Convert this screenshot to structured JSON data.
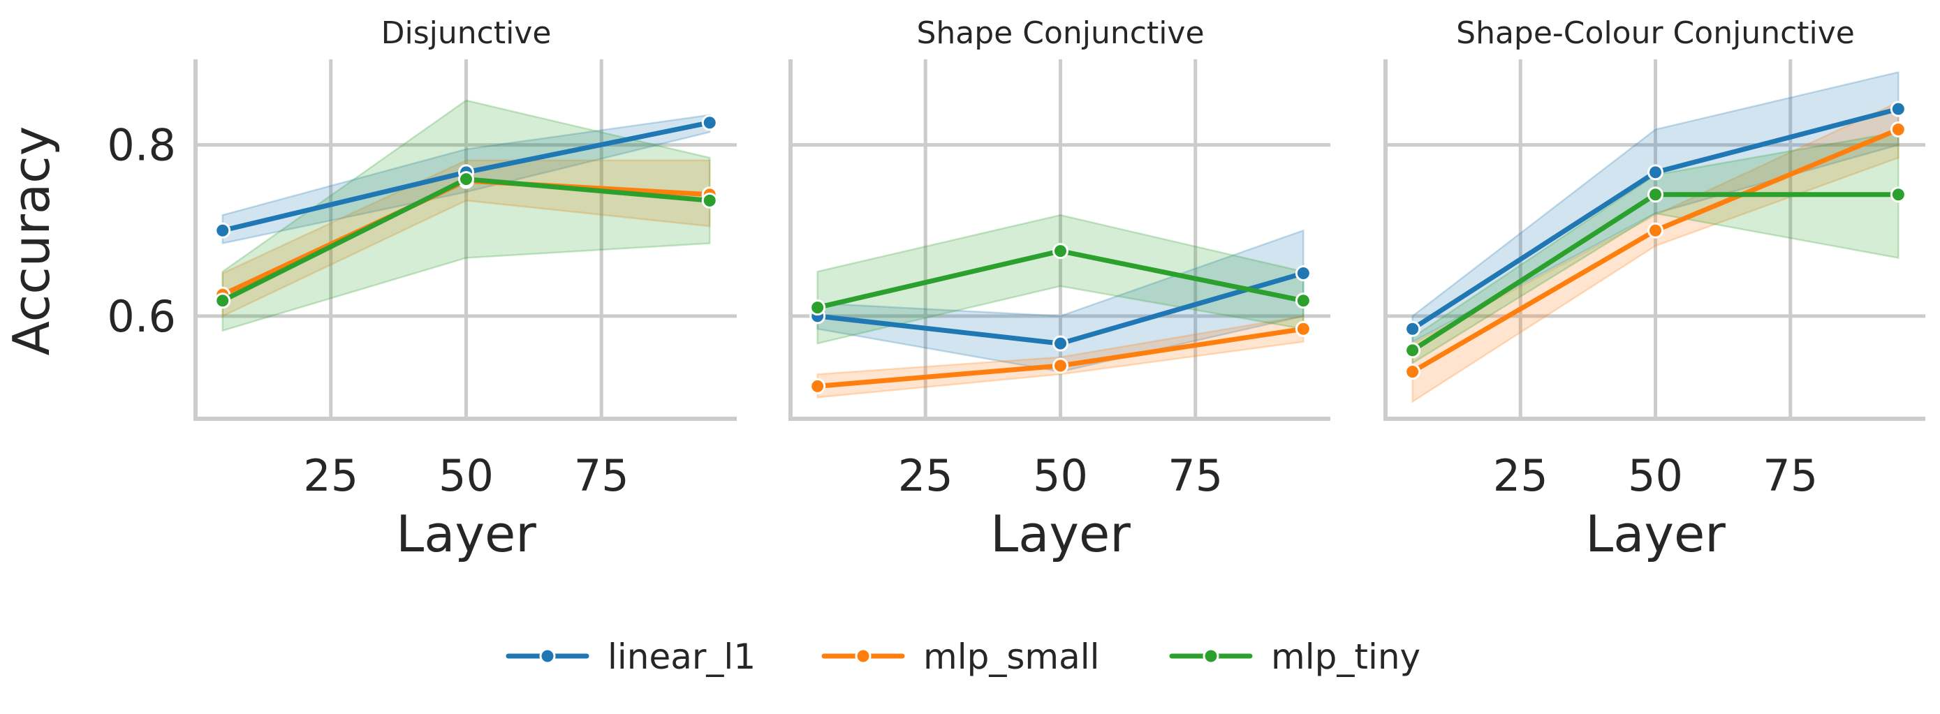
{
  "chart_data": [
    {
      "type": "line",
      "title": "Disjunctive",
      "xlabel": "Layer",
      "ylabel": "Accuracy",
      "xlim": [
        0,
        100
      ],
      "ylim": [
        0.48,
        0.9
      ],
      "xticks": [
        25,
        50,
        75
      ],
      "yticks": [
        0.6,
        0.8
      ],
      "grid": true,
      "series": [
        {
          "name": "linear_l1",
          "x": [
            5,
            50,
            95
          ],
          "y": [
            0.7,
            0.768,
            0.826
          ],
          "lower": [
            0.685,
            0.745,
            0.815
          ],
          "upper": [
            0.718,
            0.795,
            0.835
          ]
        },
        {
          "name": "mlp_small",
          "x": [
            5,
            50,
            95
          ],
          "y": [
            0.625,
            0.758,
            0.742
          ],
          "lower": [
            0.6,
            0.735,
            0.705
          ],
          "upper": [
            0.65,
            0.782,
            0.782
          ]
        },
        {
          "name": "mlp_tiny",
          "x": [
            5,
            50,
            95
          ],
          "y": [
            0.618,
            0.76,
            0.735
          ],
          "lower": [
            0.583,
            0.668,
            0.685
          ],
          "upper": [
            0.652,
            0.852,
            0.785
          ]
        }
      ]
    },
    {
      "type": "line",
      "title": "Shape Conjunctive",
      "xlabel": "Layer",
      "ylabel": "",
      "xlim": [
        0,
        100
      ],
      "ylim": [
        0.48,
        0.9
      ],
      "xticks": [
        25,
        50,
        75
      ],
      "yticks": [
        0.6,
        0.8
      ],
      "grid": true,
      "series": [
        {
          "name": "linear_l1",
          "x": [
            5,
            50,
            95
          ],
          "y": [
            0.6,
            0.568,
            0.65
          ],
          "lower": [
            0.585,
            0.535,
            0.6
          ],
          "upper": [
            0.615,
            0.6,
            0.7
          ]
        },
        {
          "name": "mlp_small",
          "x": [
            5,
            50,
            95
          ],
          "y": [
            0.518,
            0.542,
            0.585
          ],
          "lower": [
            0.505,
            0.532,
            0.57
          ],
          "upper": [
            0.532,
            0.552,
            0.6
          ]
        },
        {
          "name": "mlp_tiny",
          "x": [
            5,
            50,
            95
          ],
          "y": [
            0.61,
            0.676,
            0.618
          ],
          "lower": [
            0.568,
            0.635,
            0.585
          ],
          "upper": [
            0.652,
            0.718,
            0.652
          ]
        }
      ]
    },
    {
      "type": "line",
      "title": "Shape-Colour Conjunctive",
      "xlabel": "Layer",
      "ylabel": "",
      "xlim": [
        0,
        100
      ],
      "ylim": [
        0.48,
        0.9
      ],
      "xticks": [
        25,
        50,
        75
      ],
      "yticks": [
        0.6,
        0.8
      ],
      "grid": true,
      "series": [
        {
          "name": "linear_l1",
          "x": [
            5,
            50,
            95
          ],
          "y": [
            0.585,
            0.768,
            0.842
          ],
          "lower": [
            0.57,
            0.72,
            0.8
          ],
          "upper": [
            0.6,
            0.818,
            0.885
          ]
        },
        {
          "name": "mlp_small",
          "x": [
            5,
            50,
            95
          ],
          "y": [
            0.535,
            0.7,
            0.818
          ],
          "lower": [
            0.5,
            0.682,
            0.785
          ],
          "upper": [
            0.568,
            0.718,
            0.85
          ]
        },
        {
          "name": "mlp_tiny",
          "x": [
            5,
            50,
            95
          ],
          "y": [
            0.56,
            0.742,
            0.742
          ],
          "lower": [
            0.545,
            0.72,
            0.668
          ],
          "upper": [
            0.575,
            0.765,
            0.815
          ]
        }
      ]
    }
  ],
  "legend": {
    "placement": "bottom-center",
    "entries": [
      {
        "name": "linear_l1",
        "color": "#1f77b4"
      },
      {
        "name": "mlp_small",
        "color": "#ff7f0e"
      },
      {
        "name": "mlp_tiny",
        "color": "#2ca02c"
      }
    ]
  },
  "colors": {
    "linear_l1": "#1f77b4",
    "mlp_small": "#ff7f0e",
    "mlp_tiny": "#2ca02c",
    "grid": "#cccccc",
    "text": "#262626"
  }
}
